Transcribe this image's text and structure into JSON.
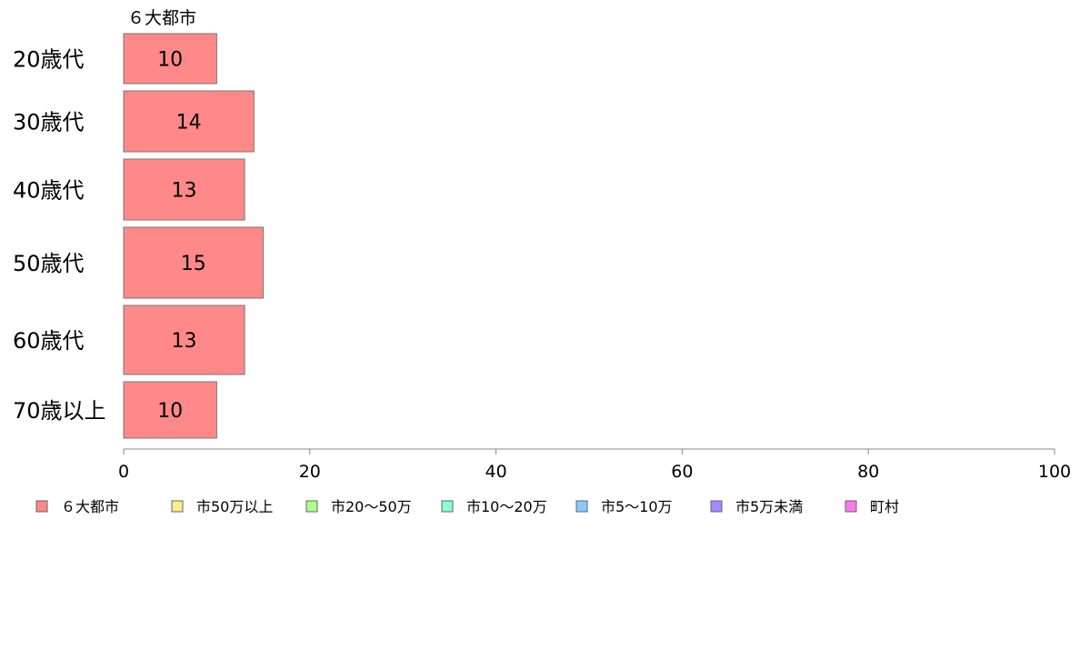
{
  "chart_data": {
    "type": "bar",
    "orientation": "horizontal",
    "stacked": true,
    "categories": [
      "20歳代",
      "30歳代",
      "40歳代",
      "50歳代",
      "60歳代",
      "70歳以上"
    ],
    "series": [
      {
        "name": "６大都市",
        "color": "#ff8888",
        "values": [
          10,
          14,
          13,
          15,
          13,
          10
        ]
      },
      {
        "name": "市50万以上",
        "color": "#ffee88",
        "values": [
          null,
          null,
          null,
          null,
          null,
          null
        ]
      },
      {
        "name": "市20〜50万",
        "color": "#aaff88",
        "values": [
          null,
          null,
          null,
          null,
          null,
          null
        ]
      },
      {
        "name": "市10〜20万",
        "color": "#88ffcc",
        "values": [
          null,
          null,
          null,
          null,
          null,
          null
        ]
      },
      {
        "name": "市5〜10万",
        "color": "#88ccff",
        "values": [
          null,
          null,
          null,
          null,
          null,
          null
        ]
      },
      {
        "name": "市5万未満",
        "color": "#aa88ff",
        "values": [
          null,
          null,
          null,
          null,
          null,
          null
        ]
      },
      {
        "name": "町村",
        "color": "#ff77ee",
        "values": [
          null,
          null,
          null,
          null,
          null,
          null
        ]
      }
    ],
    "series_title_shown": "６大都市",
    "xlim": [
      0,
      100
    ],
    "xticks": [
      0,
      20,
      40,
      60,
      80,
      100
    ],
    "legend_position": "bottom",
    "grid": false
  }
}
